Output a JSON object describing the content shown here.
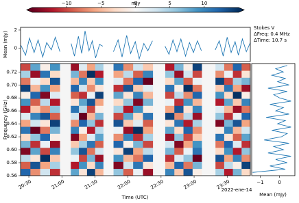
{
  "chart_data": [
    {
      "type": "heatmap",
      "colorbar_label": "mJy",
      "clim": [
        -15,
        15
      ],
      "cticks": [
        {
          "value": -10,
          "label": "−10"
        },
        {
          "value": -5,
          "label": "−5"
        },
        0,
        5,
        10
      ],
      "colorscale": [
        "#67001f",
        "#b2182b",
        "#d6604d",
        "#f4a582",
        "#fddbc7",
        "#f7f7f7",
        "#d1e5f0",
        "#92c5de",
        "#4393c3",
        "#2166ac",
        "#053061"
      ],
      "xlabel": "Time (UTC)",
      "ylabel": "Frequency (GHz)",
      "date_label": "2022-ene-14",
      "annotations": [
        "Stokes V",
        "ΔFreq: 0.4 MHz",
        "ΔTime: 10.7 s"
      ],
      "xlim": [
        20.375,
        23.85
      ],
      "xticks": [
        {
          "value": 20.5,
          "label": "20:30"
        },
        {
          "value": 21,
          "label": "21:00"
        },
        {
          "value": 21.5,
          "label": "21:30"
        },
        {
          "value": 22,
          "label": "22:00"
        },
        {
          "value": 22.5,
          "label": "22:30"
        },
        {
          "value": 23,
          "label": "23:00"
        },
        {
          "value": 23.5,
          "label": "23:30"
        }
      ],
      "ylim": [
        0.56,
        0.733
      ],
      "yticks": [
        0.56,
        0.58,
        {
          "value": 0.6,
          "label": "0.60"
        },
        0.62,
        0.64,
        0.66,
        0.68,
        {
          "value": 0.7,
          "label": "0.70"
        },
        0.72
      ],
      "blocks": [
        {
          "start": 20.375,
          "end": 20.969,
          "z": [
            [
              12,
              -9,
              4,
              -14,
              7,
              -3,
              11,
              -6,
              2,
              -12,
              9,
              -1,
              14,
              -8,
              5,
              -10
            ],
            [
              -7,
              13,
              -2,
              8,
              -11,
              6,
              -15,
              3,
              10,
              -4,
              -9,
              12,
              -5,
              1,
              -13,
              8
            ],
            [
              3,
              -6,
              15,
              -10,
              1,
              12,
              -8,
              -2,
              13,
              -7,
              4,
              -14,
              9,
              -3,
              11,
              -1
            ],
            [
              -11,
              5,
              -4,
              10,
              -13,
              -1,
              7,
              14,
              -9,
              6,
              -12,
              2,
              -6,
              13,
              -3,
              9
            ]
          ]
        },
        {
          "start": 21.135,
          "end": 21.625,
          "z": [
            [
              8,
              -12,
              1,
              6,
              -4,
              -14,
              10,
              -7,
              3,
              11,
              -2,
              -9,
              12,
              -5,
              7,
              -13
            ],
            [
              -2,
              9,
              -10,
              13,
              5,
              -6,
              -1,
              12,
              -15,
              4,
              8,
              -11,
              3,
              10,
              -8,
              2
            ],
            [
              14,
              -3,
              7,
              -8,
              11,
              2,
              -12,
              6,
              -5,
              -10,
              13,
              1,
              -7,
              -4,
              15,
              -6
            ],
            [
              -5,
              10,
              -13,
              3,
              -9,
              8,
              4,
              -11,
              7,
              -1,
              -6,
              14,
              -2,
              9,
              -12,
              5
            ]
          ]
        },
        {
          "start": 21.781,
          "end": 22.375,
          "z": [
            [
              6,
              -14,
              9,
              -2,
              12,
              -7,
              1,
              13,
              -10,
              5,
              -3,
              8,
              -11,
              2,
              -6,
              11
            ],
            [
              -9,
              3,
              -5,
              14,
              -1,
              10,
              -13,
              -4,
              8,
              -12,
              6,
              -2,
              13,
              -8,
              4,
              -7
            ],
            [
              1,
              11,
              -8,
              -6,
              7,
              -11,
              15,
              2,
              -3,
              9,
              -14,
              10,
              -4,
              12,
              -9,
              3
            ],
            [
              -13,
              -2,
              12,
              4,
              -10,
              5,
              -6,
              -9,
              11,
              -1,
              7,
              -5,
              2,
              -15,
              10,
              -4
            ]
          ]
        },
        {
          "start": 22.563,
          "end": 23.115,
          "z": [
            [
              10,
              -5,
              -11,
              7,
              3,
              -13,
              8,
              -2,
              14,
              -6,
              1,
              -10,
              11,
              -3,
              6,
              -12
            ],
            [
              -4,
              12,
              2,
              -9,
              -14,
              6,
              -3,
              11,
              -7,
              13,
              -11,
              4,
              -1,
              8,
              -13,
              7
            ],
            [
              13,
              -8,
              6,
              1,
              -6,
              -10,
              12,
              -12,
              4,
              -2,
              9,
              -7,
              15,
              -9,
              3,
              -1
            ],
            [
              -1,
              7,
              -15,
              11,
              9,
              -4,
              -7,
              5,
              -13,
              10,
              -5,
              12,
              -8,
              1,
              -10,
              14
            ]
          ]
        },
        {
          "start": 23.323,
          "end": 23.85,
          "z": [
            [
              5,
              -10,
              13,
              -3,
              -8,
              11,
              -1,
              -14,
              6,
              2,
              -12,
              9,
              -4,
              14,
              -7,
              3
            ],
            [
              -12,
              4,
              -6,
              9,
              12,
              -2,
              10,
              7,
              -11,
              -5,
              8,
              -3,
              11,
              -10,
              1,
              -8
            ],
            [
              7,
              -1,
              10,
              -12,
              2,
              -9,
              -5,
              13,
              1,
              -13,
              -4,
              15,
              -6,
              5,
              -11,
              12
            ],
            [
              -3,
              14,
              -7,
              6,
              -11,
              8,
              3,
              -6,
              12,
              -8,
              10,
              -1,
              -13,
              7,
              -2,
              -9
            ]
          ]
        }
      ]
    },
    {
      "type": "line",
      "ylabel": "Mean (mJy)",
      "color": "#1f77b4",
      "xlim": [
        20.375,
        23.85
      ],
      "ylim": [
        -1.5,
        2.3
      ],
      "yticks": [
        0,
        2
      ],
      "x": [
        20.38,
        20.45,
        20.51,
        20.58,
        20.64,
        20.71,
        20.77,
        20.84,
        20.9,
        20.97,
        21.05,
        21.14,
        21.19,
        21.25,
        21.3,
        21.35,
        21.41,
        21.46,
        21.51,
        21.57,
        21.62,
        21.7,
        21.78,
        21.85,
        21.91,
        21.98,
        22.04,
        22.11,
        22.17,
        22.24,
        22.3,
        22.37,
        22.47,
        22.56,
        22.62,
        22.68,
        22.74,
        22.8,
        22.87,
        22.93,
        22.99,
        23.05,
        23.11,
        23.22,
        23.32,
        23.38,
        23.44,
        23.5,
        23.56,
        23.62,
        23.67,
        23.73,
        23.79,
        23.85
      ],
      "values": [
        0.3,
        -0.8,
        1.1,
        -0.5,
        0.9,
        -1.0,
        0.6,
        -0.2,
        1.2,
        -0.4,
        null,
        0.5,
        -0.9,
        1.3,
        -0.6,
        1.9,
        -0.3,
        0.8,
        -1.1,
        0.4,
        0.2,
        null,
        -0.4,
        0.9,
        -1.0,
        1.4,
        -0.6,
        0.7,
        -1.2,
        0.5,
        -0.3,
        0.8,
        null,
        0.2,
        -0.7,
        0.9,
        -0.4,
        1.0,
        -0.9,
        0.6,
        -0.5,
        0.8,
        -0.3,
        null,
        -0.2,
        0.8,
        -0.9,
        1.2,
        -0.5,
        0.7,
        -0.8,
        1.0,
        -0.4,
        0.6
      ]
    },
    {
      "type": "hline",
      "xlabel": "Mean (mJy)",
      "color": "#1f77b4",
      "xlim": [
        -1.45,
        0.8
      ],
      "xticks": [
        {
          "value": -1,
          "label": "−1"
        },
        0
      ],
      "ylim": [
        0.56,
        0.733
      ],
      "y": [
        0.565,
        0.57,
        0.575,
        0.58,
        0.585,
        0.59,
        0.595,
        0.6,
        0.605,
        0.61,
        0.615,
        0.62,
        0.625,
        0.63,
        0.635,
        0.64,
        0.645,
        0.65,
        0.655,
        0.66,
        0.665,
        0.67,
        0.675,
        0.68,
        0.685,
        0.69,
        0.695,
        0.7,
        0.705,
        0.71,
        0.715,
        0.72,
        0.725,
        0.73
      ],
      "values": [
        -1.4,
        0.3,
        -0.5,
        0.4,
        -0.2,
        0.6,
        -0.6,
        0.2,
        -0.3,
        0.5,
        -0.8,
        0.1,
        0.4,
        -0.4,
        0.6,
        -0.1,
        0.3,
        -0.7,
        0.5,
        -0.2,
        0.2,
        -0.5,
        0.6,
        0,
        -0.3,
        0.4,
        -0.6,
        0.5,
        -0.1,
        0.3,
        -0.4,
        0.2,
        -0.2,
        0.4
      ]
    }
  ]
}
